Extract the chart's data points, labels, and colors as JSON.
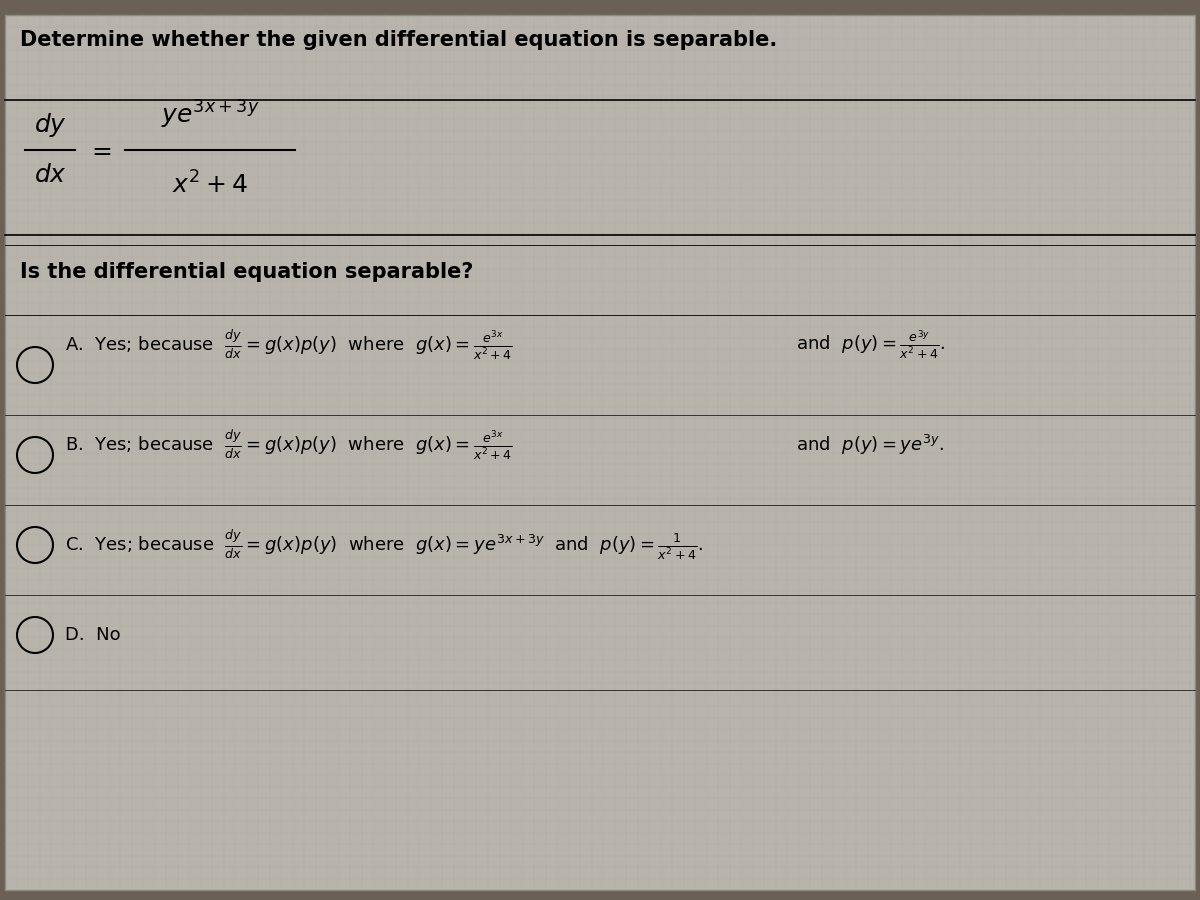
{
  "fig_width": 12.0,
  "fig_height": 9.0,
  "bg_color": "#6b6055",
  "screen_color": "#b8b4ac",
  "title": "Determine whether the given differential equation is separable.",
  "question": "Is the differential equation separable?",
  "title_fontsize": 15,
  "body_fontsize": 13,
  "math_fontsize": 13,
  "option_A_label": "A.",
  "option_B_label": "B.",
  "option_C_label": "C.",
  "option_D_label": "D.",
  "option_D_text": "No"
}
